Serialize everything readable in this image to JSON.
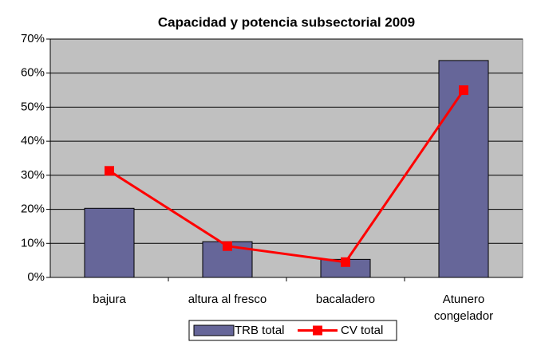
{
  "chart_data": {
    "type": "bar",
    "title": "Capacidad y potencia subsectorial 2009",
    "categories": [
      "bajura",
      "altura al fresco",
      "bacaladero",
      "Atunero congelador"
    ],
    "series": [
      {
        "name": "TRB total",
        "type": "bar",
        "color": "#666699",
        "values": [
          20.3,
          10.5,
          5.3,
          63.7
        ]
      },
      {
        "name": "CV total",
        "type": "line",
        "color": "#ff0000",
        "values": [
          31.3,
          9.2,
          4.5,
          55
        ]
      }
    ],
    "ylim": [
      0,
      70
    ],
    "yticks": [
      {
        "value": 0,
        "label": "0%"
      },
      {
        "value": 10,
        "label": "10%"
      },
      {
        "value": 20,
        "label": "20%"
      },
      {
        "value": 30,
        "label": "30%"
      },
      {
        "value": 40,
        "label": "40%"
      },
      {
        "value": 50,
        "label": "50%"
      },
      {
        "value": 60,
        "label": "60%"
      },
      {
        "value": 70,
        "label": "70%"
      }
    ],
    "grid": true,
    "legend": "bottom",
    "plot_background": "#c0c0c0"
  }
}
